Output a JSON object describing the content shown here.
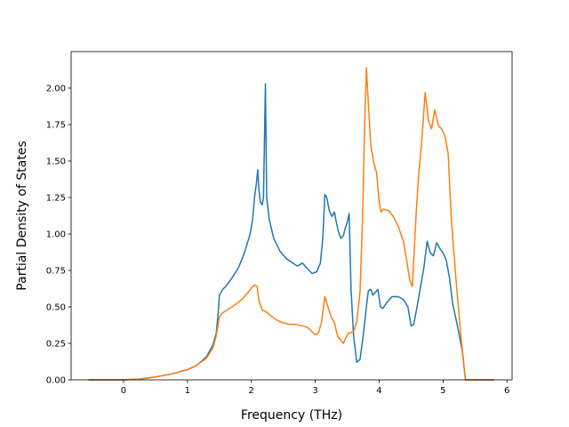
{
  "chart_data": {
    "type": "line",
    "title": "",
    "xlabel": "Frequency (THz)",
    "ylabel": "Partial Density of States",
    "xlim": [
      -0.82,
      6.08
    ],
    "ylim": [
      0,
      2.25
    ],
    "xticks": [
      0,
      1,
      2,
      3,
      4,
      5,
      6
    ],
    "xtick_labels": [
      "0",
      "1",
      "2",
      "3",
      "4",
      "5",
      "6"
    ],
    "yticks": [
      0,
      0.25,
      0.5,
      0.75,
      1.0,
      1.25,
      1.5,
      1.75,
      2.0
    ],
    "ytick_labels": [
      "0.00",
      "0.25",
      "0.50",
      "0.75",
      "1.00",
      "1.25",
      "1.50",
      "1.75",
      "2.00"
    ],
    "grid": false,
    "legend": "none",
    "series": [
      {
        "color": "#1f77b4",
        "points": [
          [
            -0.55,
            0
          ],
          [
            0.0,
            0
          ],
          [
            0.25,
            0.005
          ],
          [
            0.5,
            0.02
          ],
          [
            0.75,
            0.04
          ],
          [
            1.0,
            0.07
          ],
          [
            1.15,
            0.1
          ],
          [
            1.3,
            0.16
          ],
          [
            1.4,
            0.24
          ],
          [
            1.45,
            0.32
          ],
          [
            1.48,
            0.45
          ],
          [
            1.5,
            0.58
          ],
          [
            1.55,
            0.62
          ],
          [
            1.6,
            0.64
          ],
          [
            1.7,
            0.7
          ],
          [
            1.8,
            0.77
          ],
          [
            1.9,
            0.88
          ],
          [
            1.98,
            1.0
          ],
          [
            2.02,
            1.1
          ],
          [
            2.05,
            1.25
          ],
          [
            2.08,
            1.35
          ],
          [
            2.1,
            1.44
          ],
          [
            2.12,
            1.3
          ],
          [
            2.14,
            1.22
          ],
          [
            2.17,
            1.2
          ],
          [
            2.19,
            1.25
          ],
          [
            2.22,
            2.03
          ],
          [
            2.24,
            1.25
          ],
          [
            2.28,
            1.1
          ],
          [
            2.35,
            0.97
          ],
          [
            2.45,
            0.88
          ],
          [
            2.55,
            0.83
          ],
          [
            2.65,
            0.8
          ],
          [
            2.72,
            0.78
          ],
          [
            2.8,
            0.8
          ],
          [
            2.88,
            0.76
          ],
          [
            2.95,
            0.73
          ],
          [
            3.02,
            0.74
          ],
          [
            3.08,
            0.8
          ],
          [
            3.12,
            0.98
          ],
          [
            3.15,
            1.27
          ],
          [
            3.18,
            1.25
          ],
          [
            3.22,
            1.16
          ],
          [
            3.26,
            1.12
          ],
          [
            3.3,
            1.15
          ],
          [
            3.33,
            1.08
          ],
          [
            3.36,
            1.02
          ],
          [
            3.4,
            0.97
          ],
          [
            3.44,
            0.99
          ],
          [
            3.47,
            1.04
          ],
          [
            3.5,
            1.08
          ],
          [
            3.53,
            1.14
          ],
          [
            3.56,
            0.62
          ],
          [
            3.6,
            0.3
          ],
          [
            3.65,
            0.12
          ],
          [
            3.7,
            0.14
          ],
          [
            3.75,
            0.3
          ],
          [
            3.8,
            0.5
          ],
          [
            3.83,
            0.61
          ],
          [
            3.87,
            0.62
          ],
          [
            3.9,
            0.58
          ],
          [
            3.94,
            0.6
          ],
          [
            3.98,
            0.62
          ],
          [
            4.02,
            0.5
          ],
          [
            4.06,
            0.49
          ],
          [
            4.12,
            0.53
          ],
          [
            4.2,
            0.57
          ],
          [
            4.3,
            0.57
          ],
          [
            4.38,
            0.55
          ],
          [
            4.45,
            0.5
          ],
          [
            4.5,
            0.37
          ],
          [
            4.54,
            0.38
          ],
          [
            4.58,
            0.47
          ],
          [
            4.64,
            0.62
          ],
          [
            4.7,
            0.77
          ],
          [
            4.75,
            0.95
          ],
          [
            4.8,
            0.87
          ],
          [
            4.85,
            0.85
          ],
          [
            4.9,
            0.94
          ],
          [
            4.95,
            0.9
          ],
          [
            5.0,
            0.87
          ],
          [
            5.05,
            0.82
          ],
          [
            5.1,
            0.7
          ],
          [
            5.15,
            0.52
          ],
          [
            5.22,
            0.38
          ],
          [
            5.3,
            0.2
          ],
          [
            5.35,
            0.0
          ],
          [
            5.5,
            0
          ],
          [
            5.8,
            0
          ]
        ]
      },
      {
        "color": "#ff7f0e",
        "points": [
          [
            -0.55,
            0
          ],
          [
            0.0,
            0
          ],
          [
            0.25,
            0.005
          ],
          [
            0.5,
            0.02
          ],
          [
            0.75,
            0.04
          ],
          [
            1.0,
            0.07
          ],
          [
            1.15,
            0.1
          ],
          [
            1.3,
            0.15
          ],
          [
            1.4,
            0.22
          ],
          [
            1.45,
            0.3
          ],
          [
            1.48,
            0.38
          ],
          [
            1.5,
            0.43
          ],
          [
            1.55,
            0.46
          ],
          [
            1.7,
            0.5
          ],
          [
            1.85,
            0.55
          ],
          [
            1.95,
            0.6
          ],
          [
            2.02,
            0.64
          ],
          [
            2.06,
            0.65
          ],
          [
            2.09,
            0.64
          ],
          [
            2.12,
            0.54
          ],
          [
            2.17,
            0.48
          ],
          [
            2.22,
            0.47
          ],
          [
            2.3,
            0.44
          ],
          [
            2.4,
            0.41
          ],
          [
            2.5,
            0.39
          ],
          [
            2.6,
            0.38
          ],
          [
            2.7,
            0.38
          ],
          [
            2.8,
            0.37
          ],
          [
            2.88,
            0.36
          ],
          [
            2.95,
            0.33
          ],
          [
            3.0,
            0.31
          ],
          [
            3.05,
            0.32
          ],
          [
            3.1,
            0.4
          ],
          [
            3.15,
            0.57
          ],
          [
            3.2,
            0.5
          ],
          [
            3.25,
            0.43
          ],
          [
            3.3,
            0.39
          ],
          [
            3.35,
            0.3
          ],
          [
            3.4,
            0.27
          ],
          [
            3.44,
            0.25
          ],
          [
            3.48,
            0.29
          ],
          [
            3.52,
            0.32
          ],
          [
            3.6,
            0.33
          ],
          [
            3.65,
            0.4
          ],
          [
            3.7,
            0.6
          ],
          [
            3.74,
            1.1
          ],
          [
            3.77,
            1.7
          ],
          [
            3.8,
            2.14
          ],
          [
            3.83,
            1.9
          ],
          [
            3.87,
            1.6
          ],
          [
            3.92,
            1.48
          ],
          [
            3.96,
            1.42
          ],
          [
            4.0,
            1.22
          ],
          [
            4.03,
            1.15
          ],
          [
            4.06,
            1.17
          ],
          [
            4.15,
            1.16
          ],
          [
            4.22,
            1.12
          ],
          [
            4.3,
            1.05
          ],
          [
            4.38,
            0.95
          ],
          [
            4.43,
            0.82
          ],
          [
            4.48,
            0.68
          ],
          [
            4.52,
            0.64
          ],
          [
            4.55,
            0.9
          ],
          [
            4.58,
            1.15
          ],
          [
            4.62,
            1.42
          ],
          [
            4.66,
            1.6
          ],
          [
            4.72,
            1.97
          ],
          [
            4.77,
            1.78
          ],
          [
            4.82,
            1.72
          ],
          [
            4.87,
            1.85
          ],
          [
            4.93,
            1.74
          ],
          [
            4.98,
            1.72
          ],
          [
            5.03,
            1.67
          ],
          [
            5.08,
            1.55
          ],
          [
            5.13,
            1.1
          ],
          [
            5.2,
            0.7
          ],
          [
            5.28,
            0.3
          ],
          [
            5.35,
            0.0
          ],
          [
            5.5,
            0
          ],
          [
            5.8,
            0
          ]
        ]
      }
    ]
  }
}
